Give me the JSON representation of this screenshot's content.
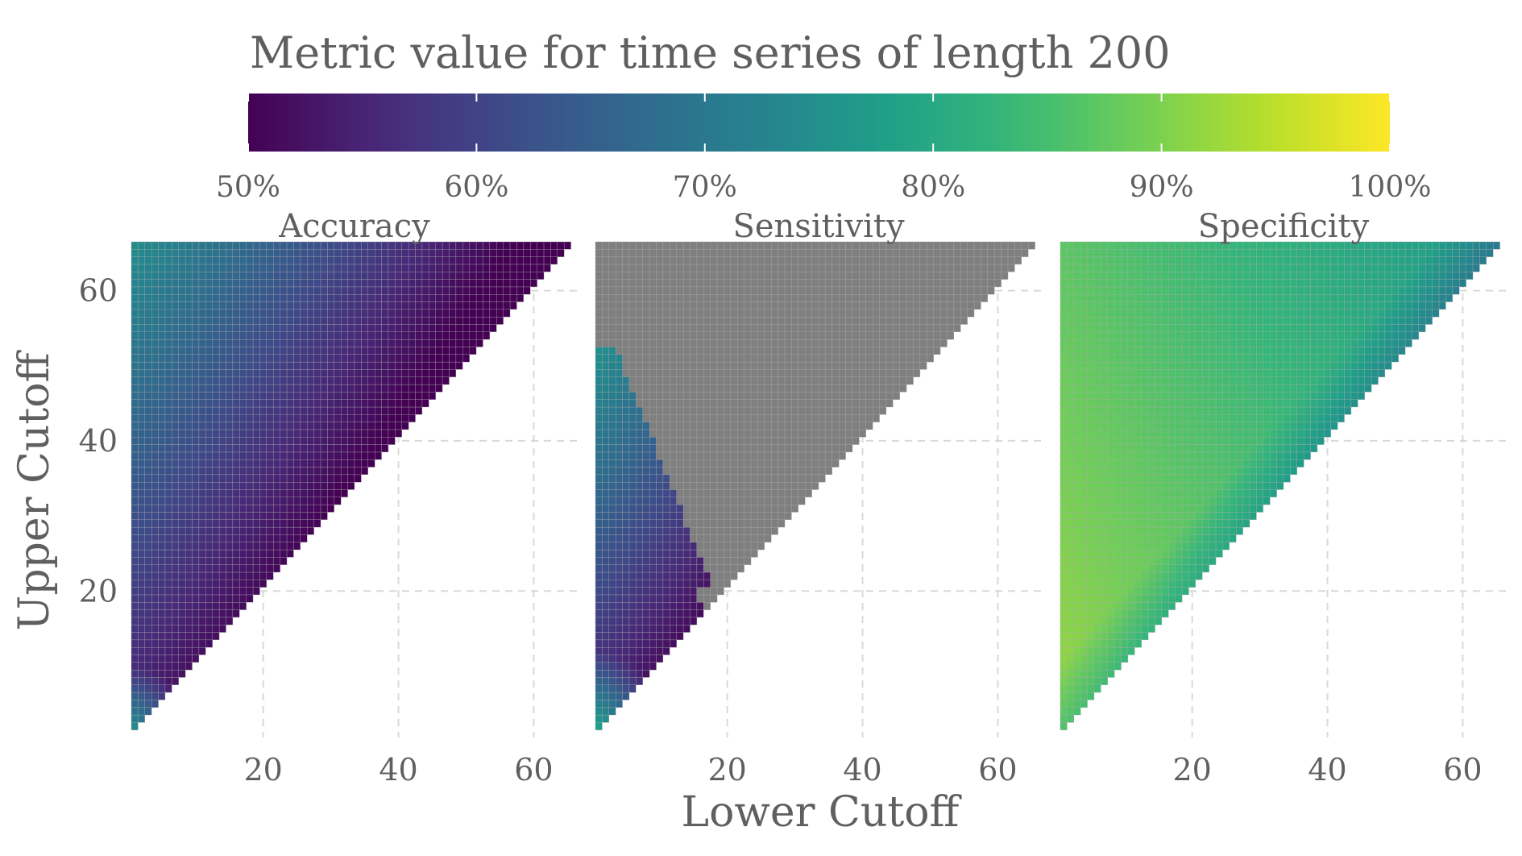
{
  "chart_data": {
    "type": "heatmap",
    "title": "Metric value for time series of length 200",
    "colorbar": {
      "colormap": "viridis",
      "range": [
        50,
        100
      ],
      "ticks": [
        "50%",
        "60%",
        "70%",
        "80%",
        "90%",
        "100%"
      ],
      "colors": [
        "#440154",
        "#3b528b",
        "#21908c",
        "#22a884",
        "#7ad151",
        "#fde725"
      ]
    },
    "xlabel": "Lower Cutoff",
    "ylabel": "Upper Cutoff",
    "x_ticks": [
      "20",
      "40",
      "60"
    ],
    "y_ticks": [
      "20",
      "40",
      "60"
    ],
    "xlim": [
      1,
      66
    ],
    "ylim": [
      1,
      66
    ],
    "grid": true,
    "missing_color": "#7f7f7f",
    "panels": [
      {
        "title": "Accuracy",
        "approx_range_pct": [
          50,
          86
        ],
        "trend": "highest at small lower and upper cutoffs, decreasing toward the diagonal"
      },
      {
        "title": "Sensitivity",
        "approx_range_pct": [
          50,
          88
        ],
        "trend": "values only for small cutoffs; remaining cells shown grey"
      },
      {
        "title": "Specificity",
        "approx_range_pct": [
          76,
          94
        ],
        "trend": "high across region, slightly lower near the diagonal"
      }
    ]
  }
}
